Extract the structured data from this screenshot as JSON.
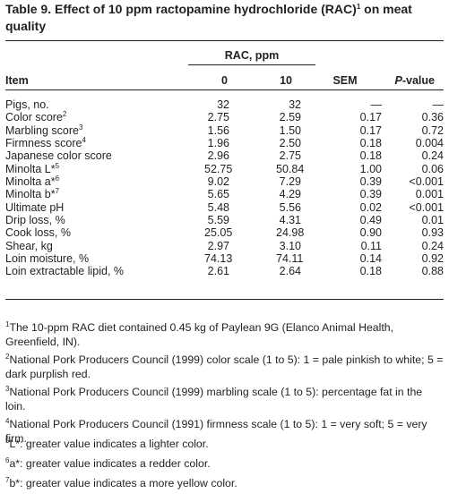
{
  "table": {
    "title": "Table 9. Effect of 10 ppm ractopamine hydrochloride (RAC)",
    "title_sup": "1",
    "title_tail": " on meat quality",
    "group_header": "RAC, ppm",
    "columns": {
      "item": "Item",
      "rac0": "0",
      "rac10": "10",
      "sem": "SEM",
      "pvalue_italic": "P",
      "pvalue_rest": "-value"
    },
    "rows": [
      {
        "label": "Pigs, no.",
        "sup": "",
        "rac0": "32",
        "rac10": "32",
        "sem": "—",
        "p": "—"
      },
      {
        "label": "Color score",
        "sup": "2",
        "rac0": "2.75",
        "rac10": "2.59",
        "sem": "0.17",
        "p": "0.36"
      },
      {
        "label": "Marbling score",
        "sup": "3",
        "rac0": "1.56",
        "rac10": "1.50",
        "sem": "0.17",
        "p": "0.72"
      },
      {
        "label": "Firmness score",
        "sup": "4",
        "rac0": "1.96",
        "rac10": "2.50",
        "sem": "0.18",
        "p": "0.004"
      },
      {
        "label": "Japanese color score",
        "sup": "",
        "rac0": "2.96",
        "rac10": "2.75",
        "sem": "0.18",
        "p": "0.24"
      },
      {
        "label": "Minolta L*",
        "sup": "5",
        "rac0": "52.75",
        "rac10": "50.84",
        "sem": "1.00",
        "p": "0.06"
      },
      {
        "label": "Minolta a*",
        "sup": "6",
        "rac0": "9.02",
        "rac10": "7.29",
        "sem": "0.39",
        "p": "<0.001"
      },
      {
        "label": "Minolta b*",
        "sup": "7",
        "rac0": "5.65",
        "rac10": "4.29",
        "sem": "0.39",
        "p": "0.001"
      },
      {
        "label": "Ultimate pH",
        "sup": "",
        "rac0": "5.48",
        "rac10": "5.56",
        "sem": "0.02",
        "p": "<0.001"
      },
      {
        "label": "Drip loss, %",
        "sup": "",
        "rac0": "5.59",
        "rac10": "4.31",
        "sem": "0.49",
        "p": "0.01"
      },
      {
        "label": "Cook loss, %",
        "sup": "",
        "rac0": "25.05",
        "rac10": "24.98",
        "sem": "0.90",
        "p": "0.93"
      },
      {
        "label": "Shear, kg",
        "sup": "",
        "rac0": "2.97",
        "rac10": "3.10",
        "sem": "0.11",
        "p": "0.24"
      },
      {
        "label": "Loin moisture, %",
        "sup": "",
        "rac0": "74.13",
        "rac10": "74.11",
        "sem": "0.14",
        "p": "0.92"
      },
      {
        "label": "Loin extractable lipid, %",
        "sup": "",
        "rac0": "2.61",
        "rac10": "2.64",
        "sem": "0.18",
        "p": "0.88"
      }
    ]
  },
  "footnotes": [
    {
      "mark": "1",
      "text": "The 10-ppm RAC diet contained 0.45 kg of Paylean 9G (Elanco Animal Health, Greenfield, IN)."
    },
    {
      "mark": "2",
      "text": "National Pork Producers Council (1999) color scale (1 to 5): 1 = pale pinkish to white; 5 = dark purplish red."
    },
    {
      "mark": "3",
      "text": "National Pork Producers Council (1999) marbling scale (1 to 5): percentage fat in the loin."
    },
    {
      "mark": "4",
      "text": "National Pork Producers Council (1991) firmness scale (1 to 5): 1 = very soft; 5 = very firm."
    },
    {
      "mark": "5",
      "text": "L*: greater value indicates a lighter color."
    },
    {
      "mark": "6",
      "text": "a*: greater value indicates a redder color."
    },
    {
      "mark": "7",
      "text": "b*: greater value indicates a more yellow color."
    }
  ]
}
